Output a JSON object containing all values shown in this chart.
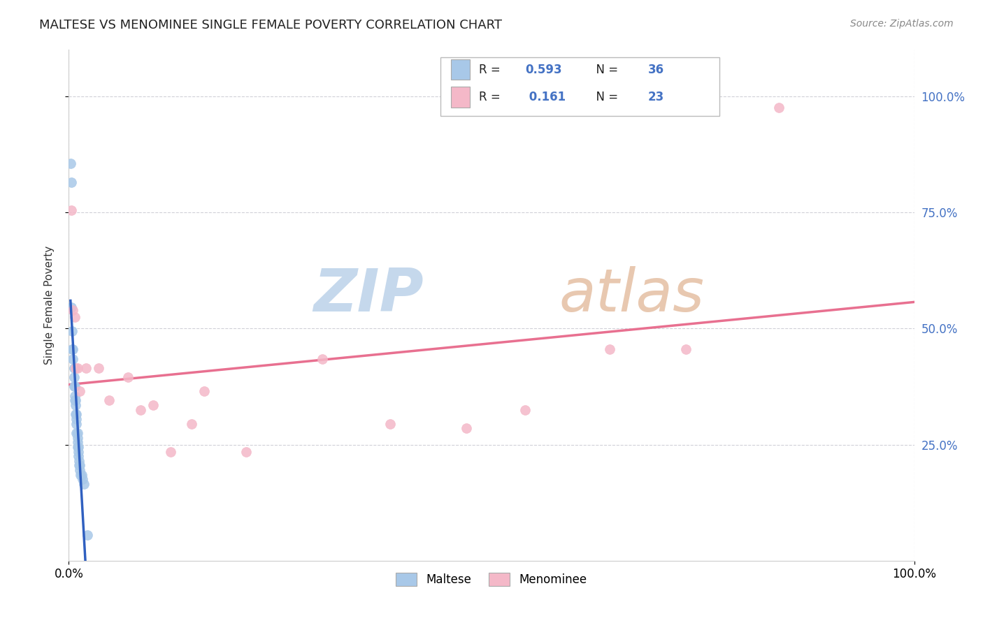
{
  "title": "MALTESE VS MENOMINEE SINGLE FEMALE POVERTY CORRELATION CHART",
  "source": "Source: ZipAtlas.com",
  "ylabel": "Single Female Poverty",
  "maltese_R": "0.593",
  "maltese_N": "36",
  "menominee_R": "0.161",
  "menominee_N": "23",
  "maltese_color": "#a8c8e8",
  "menominee_color": "#f4b8c8",
  "maltese_line_color": "#3060c0",
  "menominee_line_color": "#e87090",
  "maltese_x": [
    0.002,
    0.003,
    0.003,
    0.004,
    0.004,
    0.005,
    0.005,
    0.006,
    0.006,
    0.006,
    0.007,
    0.007,
    0.007,
    0.008,
    0.008,
    0.008,
    0.009,
    0.009,
    0.009,
    0.009,
    0.01,
    0.01,
    0.01,
    0.01,
    0.011,
    0.011,
    0.011,
    0.012,
    0.012,
    0.013,
    0.013,
    0.014,
    0.015,
    0.016,
    0.018,
    0.022
  ],
  "maltese_y": [
    0.855,
    0.815,
    0.545,
    0.495,
    0.455,
    0.455,
    0.435,
    0.415,
    0.395,
    0.375,
    0.375,
    0.355,
    0.345,
    0.345,
    0.335,
    0.315,
    0.315,
    0.305,
    0.295,
    0.275,
    0.275,
    0.265,
    0.255,
    0.245,
    0.245,
    0.235,
    0.225,
    0.215,
    0.205,
    0.205,
    0.195,
    0.185,
    0.185,
    0.175,
    0.165,
    0.055
  ],
  "menominee_x": [
    0.003,
    0.005,
    0.007,
    0.008,
    0.01,
    0.013,
    0.02,
    0.035,
    0.048,
    0.07,
    0.085,
    0.1,
    0.12,
    0.145,
    0.16,
    0.21,
    0.3,
    0.38,
    0.47,
    0.54,
    0.64,
    0.73,
    0.84
  ],
  "menominee_y": [
    0.755,
    0.54,
    0.525,
    0.415,
    0.415,
    0.365,
    0.415,
    0.415,
    0.345,
    0.395,
    0.325,
    0.335,
    0.235,
    0.295,
    0.365,
    0.235,
    0.435,
    0.295,
    0.285,
    0.325,
    0.455,
    0.455,
    0.975
  ],
  "xlim": [
    0.0,
    1.0
  ],
  "ylim": [
    0.0,
    1.1
  ],
  "xticks": [
    0.0,
    1.0
  ],
  "xtick_labels": [
    "0.0%",
    "100.0%"
  ],
  "yticks": [
    0.25,
    0.5,
    0.75,
    1.0
  ],
  "ytick_labels": [
    "25.0%",
    "50.0%",
    "75.0%",
    "100.0%"
  ],
  "grid_color": "#d0d0d8",
  "background_color": "#ffffff",
  "watermark_zip_color": "#c8d8e8",
  "watermark_atlas_color": "#d8c8c0"
}
